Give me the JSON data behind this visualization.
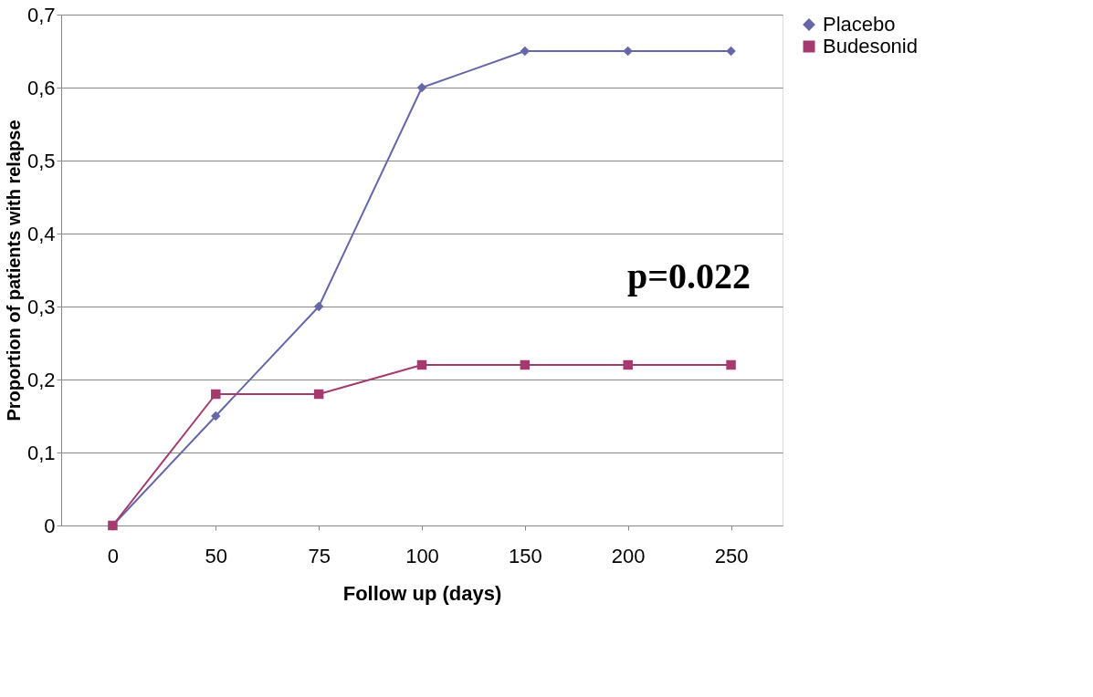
{
  "chart_data": {
    "type": "line",
    "xlabel": "Follow up (days)",
    "ylabel": "Proportion of patients with relapse",
    "categories": [
      "0",
      "50",
      "75",
      "100",
      "150",
      "200",
      "250"
    ],
    "series": [
      {
        "name": "Placebo",
        "color": "#6667a8",
        "marker": "diamond",
        "values": [
          0,
          0.15,
          0.3,
          0.6,
          0.65,
          0.65,
          0.65
        ]
      },
      {
        "name": "Budesonid",
        "color": "#a33b6e",
        "marker": "square",
        "values": [
          0,
          0.18,
          0.18,
          0.22,
          0.22,
          0.22,
          0.22
        ]
      }
    ],
    "ylim": [
      0,
      0.7
    ],
    "yticks": [
      {
        "value": 0,
        "label": "0"
      },
      {
        "value": 0.1,
        "label": "0,1"
      },
      {
        "value": 0.2,
        "label": "0,2"
      },
      {
        "value": 0.3,
        "label": "0,3"
      },
      {
        "value": 0.4,
        "label": "0,4"
      },
      {
        "value": 0.5,
        "label": "0,5"
      },
      {
        "value": 0.6,
        "label": "0,6"
      },
      {
        "value": 0.7,
        "label": "0,7"
      }
    ],
    "grid": "y",
    "legend": "right",
    "line_style": "solid",
    "annotations": [
      "p=0.022"
    ]
  }
}
